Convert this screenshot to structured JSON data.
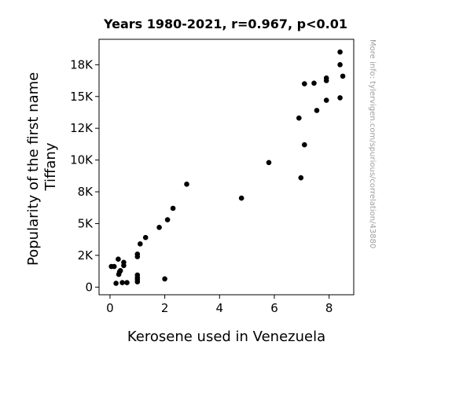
{
  "chart_data": {
    "type": "scatter",
    "title": "Years 1980-2021, r=0.967, p<0.01",
    "xlabel": "Kerosene used in Venezuela",
    "ylabel_lines": [
      "Popularity of the first name",
      "Tiffany"
    ],
    "watermark": "More info: tylervigen.com/spurious/correlation/43880",
    "xlim": [
      -0.4,
      8.9
    ],
    "ylim": [
      -600,
      19500
    ],
    "x_ticks": [
      {
        "value": 0,
        "label": "0"
      },
      {
        "value": 2,
        "label": "2"
      },
      {
        "value": 4,
        "label": "4"
      },
      {
        "value": 6,
        "label": "6"
      },
      {
        "value": 8,
        "label": "8"
      }
    ],
    "y_ticks": [
      {
        "value": 0,
        "label": "0"
      },
      {
        "value": 2500,
        "label": "2K"
      },
      {
        "value": 5000,
        "label": "5K"
      },
      {
        "value": 7500,
        "label": "8K"
      },
      {
        "value": 10000,
        "label": "10K"
      },
      {
        "value": 12500,
        "label": "12K"
      },
      {
        "value": 15000,
        "label": "15K"
      },
      {
        "value": 17500,
        "label": "18K"
      }
    ],
    "points": [
      {
        "x": 0.05,
        "y": 1620
      },
      {
        "x": 0.15,
        "y": 1620
      },
      {
        "x": 0.22,
        "y": 300
      },
      {
        "x": 0.3,
        "y": 2200
      },
      {
        "x": 0.32,
        "y": 1000
      },
      {
        "x": 0.35,
        "y": 1200
      },
      {
        "x": 0.38,
        "y": 1300
      },
      {
        "x": 0.45,
        "y": 350
      },
      {
        "x": 0.5,
        "y": 1700
      },
      {
        "x": 0.5,
        "y": 1950
      },
      {
        "x": 0.62,
        "y": 350
      },
      {
        "x": 1.0,
        "y": 420
      },
      {
        "x": 1.0,
        "y": 580
      },
      {
        "x": 1.0,
        "y": 750
      },
      {
        "x": 1.0,
        "y": 950
      },
      {
        "x": 1.0,
        "y": 2400
      },
      {
        "x": 1.0,
        "y": 2600
      },
      {
        "x": 1.1,
        "y": 3400
      },
      {
        "x": 1.3,
        "y": 3900
      },
      {
        "x": 1.8,
        "y": 4700
      },
      {
        "x": 2.0,
        "y": 650
      },
      {
        "x": 2.1,
        "y": 5300
      },
      {
        "x": 2.3,
        "y": 6200
      },
      {
        "x": 2.8,
        "y": 8100
      },
      {
        "x": 4.8,
        "y": 7000
      },
      {
        "x": 5.8,
        "y": 9800
      },
      {
        "x": 6.9,
        "y": 13300
      },
      {
        "x": 6.97,
        "y": 8600
      },
      {
        "x": 7.1,
        "y": 11200
      },
      {
        "x": 7.1,
        "y": 16000
      },
      {
        "x": 7.45,
        "y": 16050
      },
      {
        "x": 7.55,
        "y": 13900
      },
      {
        "x": 7.9,
        "y": 14700
      },
      {
        "x": 7.9,
        "y": 16250
      },
      {
        "x": 7.9,
        "y": 16450
      },
      {
        "x": 8.4,
        "y": 14900
      },
      {
        "x": 8.4,
        "y": 17500
      },
      {
        "x": 8.4,
        "y": 18500
      },
      {
        "x": 8.5,
        "y": 16600
      }
    ]
  }
}
